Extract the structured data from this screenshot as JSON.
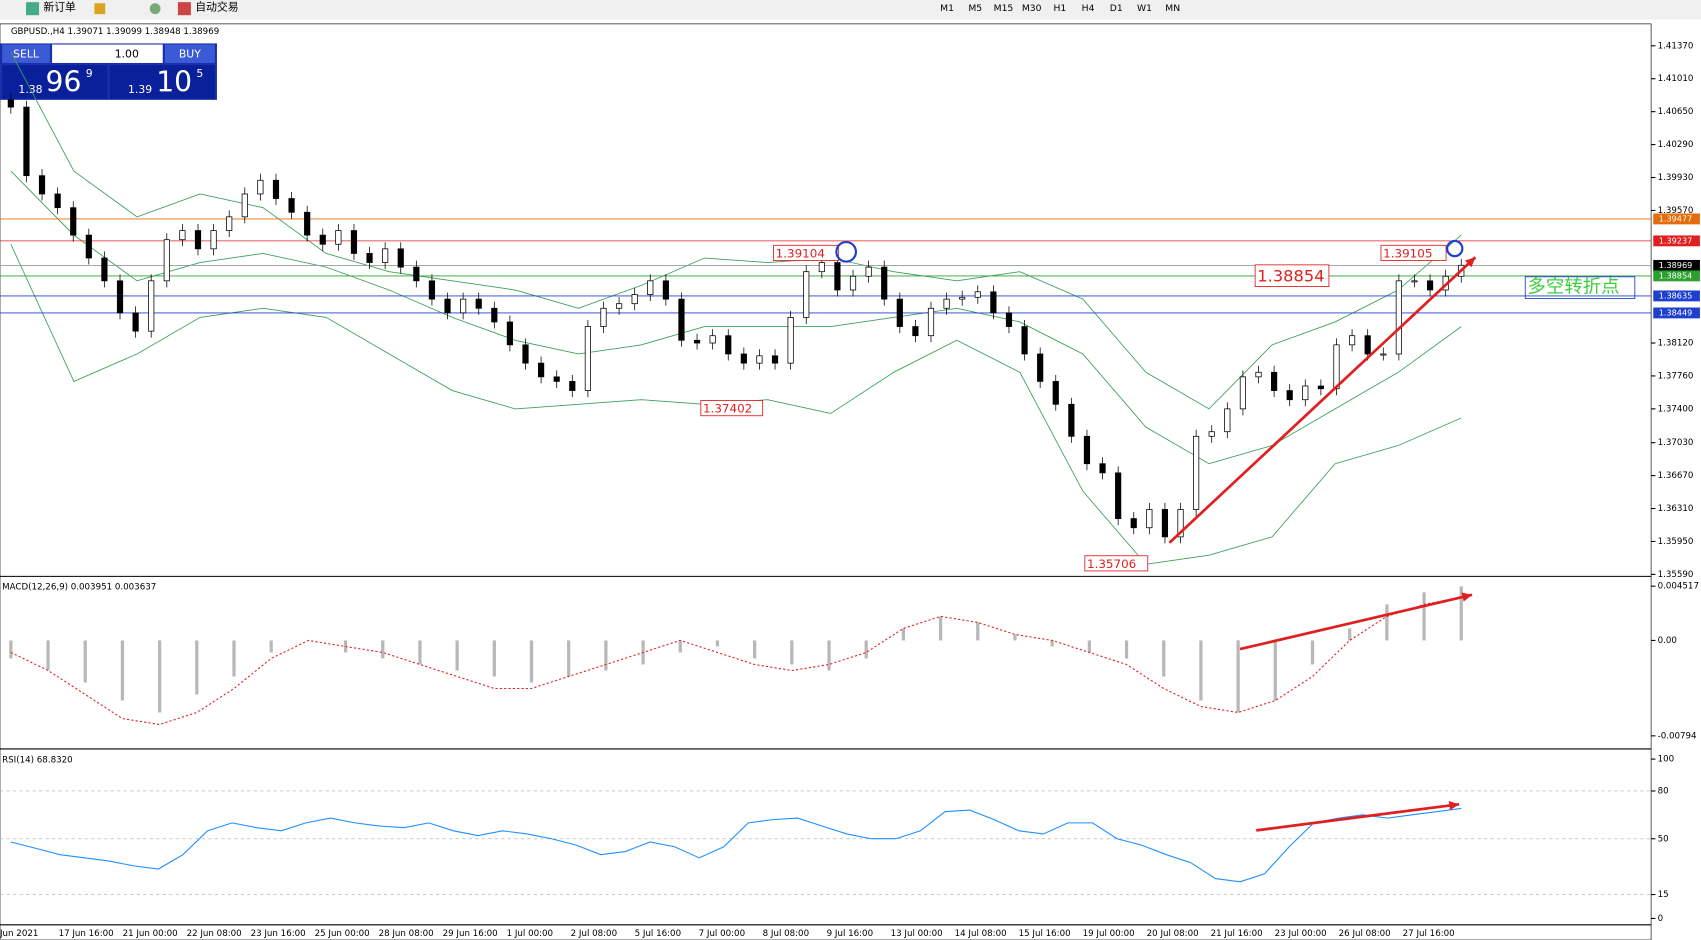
{
  "toolbar": {
    "new_order": "新订单",
    "auto_trading": "自动交易",
    "timeframes": [
      "M1",
      "M5",
      "M15",
      "M30",
      "H1",
      "H4",
      "D1",
      "W1",
      "MN"
    ]
  },
  "trade_panel": {
    "sell": "SELL",
    "buy": "BUY",
    "lots": "1.00",
    "sell_big": "1.38",
    "sell_pips": "96",
    "sell_frac": "9",
    "buy_big": "1.39",
    "buy_pips": "10",
    "buy_frac": "5"
  },
  "time_axis": {
    "labels": [
      "Jun 2021",
      "17 Jun 16:00",
      "21 Jun 00:00",
      "22 Jun 08:00",
      "23 Jun 16:00",
      "25 Jun 00:00",
      "28 Jun 08:00",
      "29 Jun 16:00",
      "1 Jul 00:00",
      "2 Jul 08:00",
      "5 Jul 16:00",
      "7 Jul 00:00",
      "8 Jul 08:00",
      "9 Jul 16:00",
      "13 Jul 00:00",
      "14 Jul 08:00",
      "15 Jul 16:00",
      "19 Jul 00:00",
      "20 Jul 08:00",
      "21 Jul 16:00",
      "23 Jul 00:00",
      "26 Jul 08:00",
      "27 Jul 16:00"
    ]
  },
  "chart_data": [
    {
      "type": "candlestick",
      "title": "GBPUSD.,H4  1.39071 1.39099 1.38948 1.38969",
      "values": [
        1.407,
        1.3995,
        1.3975,
        1.396,
        1.393,
        1.3905,
        1.388,
        1.3845,
        1.3825,
        1.388,
        1.3925,
        1.3935,
        1.3915,
        1.3935,
        1.395,
        1.3975,
        1.399,
        1.397,
        1.3955,
        1.393,
        1.392,
        1.3935,
        1.391,
        1.39,
        1.3915,
        1.3895,
        1.388,
        1.386,
        1.3845,
        1.386,
        1.385,
        1.3835,
        1.381,
        1.379,
        1.3775,
        1.377,
        1.376,
        1.383,
        1.385,
        1.3855,
        1.3865,
        1.388,
        1.386,
        1.3815,
        1.3812,
        1.382,
        1.38,
        1.379,
        1.3798,
        1.379,
        1.384,
        1.389,
        1.39,
        1.387,
        1.3885,
        1.3895,
        1.386,
        1.383,
        1.382,
        1.385,
        1.386,
        1.3862,
        1.3868,
        1.3845,
        1.383,
        1.38,
        1.377,
        1.3745,
        1.371,
        1.368,
        1.367,
        1.362,
        1.361,
        1.363,
        1.36,
        1.363,
        1.371,
        1.3715,
        1.374,
        1.3775,
        1.378,
        1.376,
        1.375,
        1.3765,
        1.3762,
        1.381,
        1.382,
        1.38,
        1.38,
        1.388,
        1.388,
        1.387,
        1.3885,
        1.3897
      ],
      "bands": {
        "color": "#3aa05a",
        "upper": [
          1.413,
          1.4,
          1.395,
          1.3975,
          1.396,
          1.391,
          1.389,
          1.388,
          1.387,
          1.385,
          1.3875,
          1.3905,
          1.39,
          1.3905,
          1.389,
          1.388,
          1.389,
          1.386,
          1.378,
          1.374,
          1.381,
          1.3835,
          1.387,
          1.393
        ],
        "middle": [
          1.4,
          1.393,
          1.388,
          1.39,
          1.391,
          1.3895,
          1.387,
          1.384,
          1.3815,
          1.38,
          1.381,
          1.383,
          1.383,
          1.383,
          1.384,
          1.385,
          1.3835,
          1.38,
          1.372,
          1.368,
          1.37,
          1.374,
          1.378,
          1.383
        ],
        "lower": [
          1.392,
          1.377,
          1.38,
          1.384,
          1.385,
          1.384,
          1.38,
          1.376,
          1.374,
          1.3745,
          1.375,
          1.3745,
          1.375,
          1.3735,
          1.378,
          1.3815,
          1.378,
          1.365,
          1.357,
          1.358,
          1.36,
          1.368,
          1.37,
          1.373
        ]
      },
      "lines": [
        {
          "value": 1.39477,
          "color": "#e46c0a"
        },
        {
          "value": 1.39237,
          "color": "#e02020"
        },
        {
          "value": 1.38969,
          "color": "#999999"
        },
        {
          "value": 1.38854,
          "color": "#2ca02c"
        },
        {
          "value": 1.38635,
          "color": "#1f3fcf"
        },
        {
          "value": 1.38449,
          "color": "#1f3fcf"
        }
      ],
      "annotations": [
        {
          "text": "1.39104"
        },
        {
          "text": "1.37402"
        },
        {
          "text": "1.35706"
        },
        {
          "text": "1.39105"
        },
        {
          "text": "1.38854"
        },
        {
          "text": "多空转折点"
        }
      ],
      "ylim": [
        1.3558,
        1.4161
      ],
      "yticks": [
        {
          "value": 1.4137,
          "label": "1.41370"
        },
        {
          "value": 1.4101,
          "label": "1.41010"
        },
        {
          "value": 1.4065,
          "label": "1.40650"
        },
        {
          "value": 1.4029,
          "label": "1.40290"
        },
        {
          "value": 1.3993,
          "label": "1.39930"
        },
        {
          "value": 1.3957,
          "label": "1.39570"
        },
        {
          "value": 1.3812,
          "label": "1.38120"
        },
        {
          "value": 1.3776,
          "label": "1.37760"
        },
        {
          "value": 1.374,
          "label": "1.37400"
        },
        {
          "value": 1.3703,
          "label": "1.37030"
        },
        {
          "value": 1.3667,
          "label": "1.36670"
        },
        {
          "value": 1.3631,
          "label": "1.36310"
        },
        {
          "value": 1.3595,
          "label": "1.35950"
        },
        {
          "value": 1.3559,
          "label": "1.35590"
        }
      ]
    },
    {
      "type": "macd",
      "title": "MACD(12,26,9) 0.003951 0.003637",
      "values": [
        -0.0015,
        -0.0025,
        -0.0035,
        -0.005,
        -0.006,
        -0.0045,
        -0.003,
        -0.001,
        0,
        -0.001,
        -0.0015,
        -0.002,
        -0.0025,
        -0.003,
        -0.0035,
        -0.003,
        -0.0025,
        -0.002,
        -0.001,
        -0.0005,
        -0.0015,
        -0.002,
        -0.0025,
        -0.0015,
        0.001,
        0.002,
        0.0015,
        0.0005,
        -0.0005,
        -0.001,
        -0.0015,
        -0.003,
        -0.005,
        -0.006,
        -0.005,
        -0.002,
        0.001,
        0.003,
        0.004,
        0.0045
      ],
      "signal": [
        -0.001,
        -0.0025,
        -0.0045,
        -0.0065,
        -0.007,
        -0.006,
        -0.004,
        -0.0015,
        0,
        -0.0005,
        -0.001,
        -0.002,
        -0.003,
        -0.004,
        -0.004,
        -0.003,
        -0.002,
        -0.001,
        0,
        -0.001,
        -0.002,
        -0.0025,
        -0.002,
        -0.001,
        0.001,
        0.002,
        0.0015,
        0.0005,
        0,
        -0.001,
        -0.002,
        -0.004,
        -0.0055,
        -0.006,
        -0.005,
        -0.003,
        0,
        0.002,
        0.003,
        0.0036
      ],
      "ylim": [
        -0.00885,
        0.00515
      ],
      "yticks": [
        {
          "value": 0.004517,
          "label": "0.004517"
        },
        {
          "value": 0,
          "label": "0.00"
        },
        {
          "value": -0.00794,
          "label": "-0.00794"
        }
      ]
    },
    {
      "type": "rsi",
      "title": "RSI(14) 68.8320",
      "color": "#1e90ff",
      "values": [
        48,
        44,
        40,
        38,
        36,
        33,
        31,
        40,
        55,
        60,
        57,
        55,
        60,
        63,
        60,
        58,
        57,
        60,
        55,
        52,
        55,
        53,
        50,
        46,
        40,
        42,
        48,
        45,
        38,
        45,
        60,
        62,
        63,
        58,
        53,
        50,
        50,
        55,
        67,
        68,
        62,
        55,
        53,
        60,
        60,
        50,
        46,
        40,
        35,
        25,
        23,
        28,
        45,
        60,
        63,
        65,
        63,
        65,
        67,
        69
      ],
      "ylim": [
        -4,
        105
      ],
      "yticks": [
        100,
        80,
        50,
        15,
        0
      ]
    }
  ]
}
